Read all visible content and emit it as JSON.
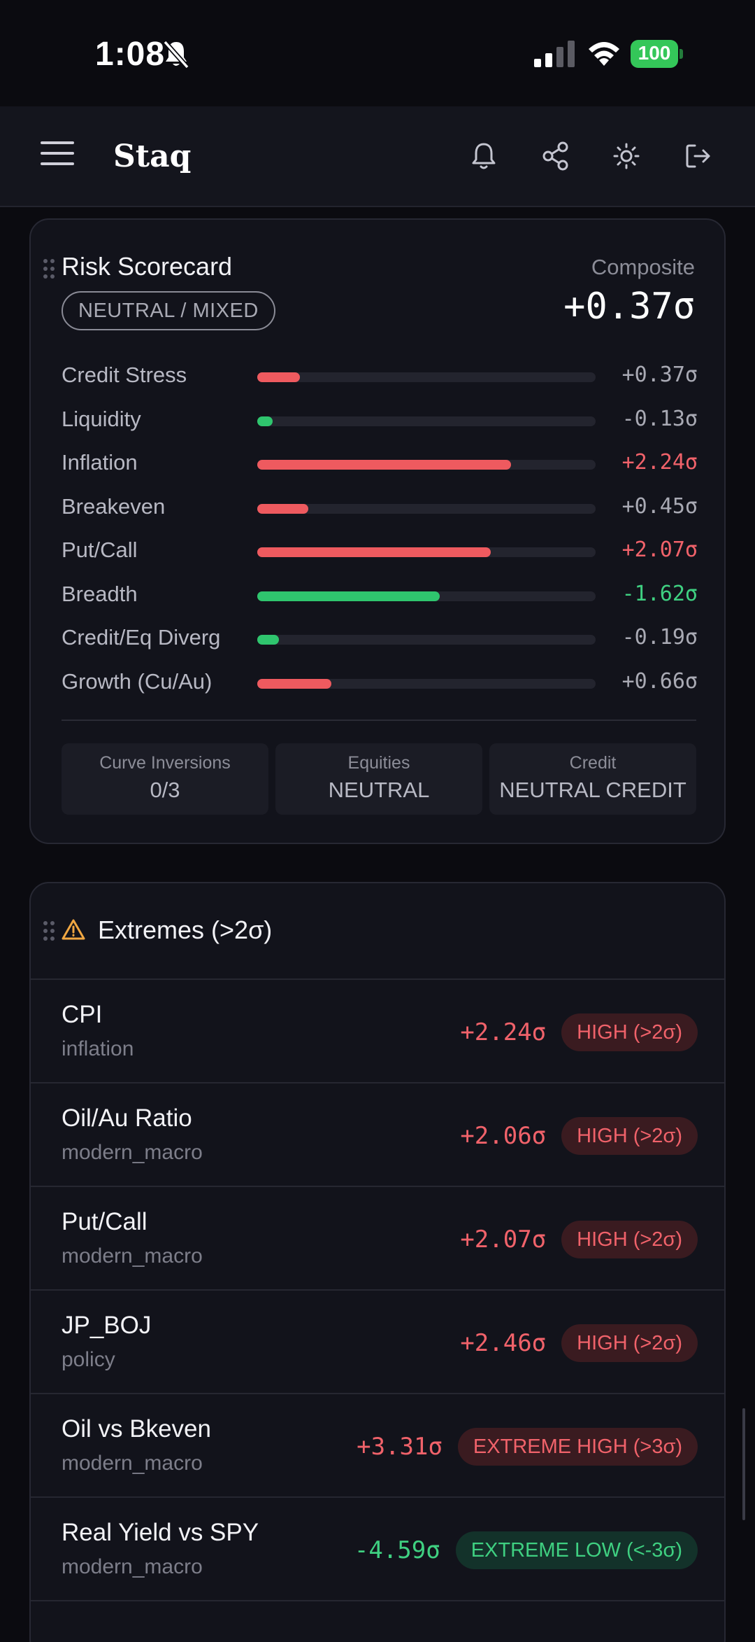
{
  "status": {
    "time": "1:08",
    "battery": "100"
  },
  "header": {
    "brand": "Staq"
  },
  "risk": {
    "title": "Risk Scorecard",
    "badge": "NEUTRAL / MIXED",
    "composite_label": "Composite",
    "composite_value": "+0.37σ",
    "metrics": [
      {
        "name": "Credit Stress",
        "value": "+0.37σ",
        "fill": 0.125,
        "dir": "pos",
        "value_color": "#a9aab4"
      },
      {
        "name": "Liquidity",
        "value": "-0.13σ",
        "fill": 0.045,
        "dir": "neg",
        "value_color": "#a9aab4"
      },
      {
        "name": "Inflation",
        "value": "+2.24σ",
        "fill": 0.75,
        "dir": "pos",
        "value_color": "#f0626a"
      },
      {
        "name": "Breakeven",
        "value": "+0.45σ",
        "fill": 0.15,
        "dir": "pos",
        "value_color": "#a9aab4"
      },
      {
        "name": "Put/Call",
        "value": "+2.07σ",
        "fill": 0.69,
        "dir": "pos",
        "value_color": "#f0626a"
      },
      {
        "name": "Breadth",
        "value": "-1.62σ",
        "fill": 0.54,
        "dir": "neg",
        "value_color": "#3fd081"
      },
      {
        "name": "Credit/Eq Diverg",
        "value": "-0.19σ",
        "fill": 0.065,
        "dir": "neg",
        "value_color": "#a9aab4"
      },
      {
        "name": "Growth (Cu/Au)",
        "value": "+0.66σ",
        "fill": 0.22,
        "dir": "pos",
        "value_color": "#a9aab4"
      }
    ],
    "summary": [
      {
        "label": "Curve Inversions",
        "value": "0/3"
      },
      {
        "label": "Equities",
        "value": "NEUTRAL"
      },
      {
        "label": "Credit",
        "value": "NEUTRAL CREDIT"
      }
    ]
  },
  "extremes": {
    "title": "Extremes (>2σ)",
    "rows": [
      {
        "name": "CPI",
        "category": "inflation",
        "value": "+2.24σ",
        "badge": "HIGH (>2σ)",
        "tone": "red"
      },
      {
        "name": "Oil/Au Ratio",
        "category": "modern_macro",
        "value": "+2.06σ",
        "badge": "HIGH (>2σ)",
        "tone": "red"
      },
      {
        "name": "Put/Call",
        "category": "modern_macro",
        "value": "+2.07σ",
        "badge": "HIGH (>2σ)",
        "tone": "red"
      },
      {
        "name": "JP_BOJ",
        "category": "policy",
        "value": "+2.46σ",
        "badge": "HIGH (>2σ)",
        "tone": "red"
      },
      {
        "name": "Oil vs Bkeven",
        "category": "modern_macro",
        "value": "+3.31σ",
        "badge": "EXTREME HIGH (>3σ)",
        "tone": "red"
      },
      {
        "name": "Real Yield vs SPY",
        "category": "modern_macro",
        "value": "-4.59σ",
        "badge": "EXTREME LOW (<-3σ)",
        "tone": "green"
      }
    ]
  },
  "colors": {
    "positive": "#ee5a5f",
    "negative": "#2fc56e",
    "red_text": "#f0626a",
    "green_text": "#3fd081"
  },
  "icons": [
    "menu-icon",
    "bell-icon",
    "share-icon",
    "sun-icon",
    "logout-icon",
    "drag-handle-icon",
    "warning-icon"
  ]
}
